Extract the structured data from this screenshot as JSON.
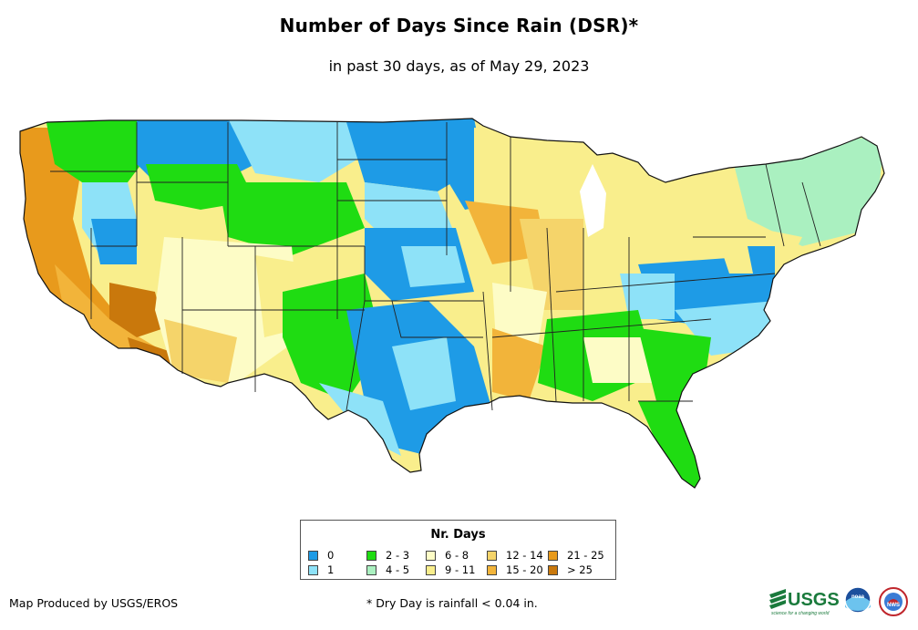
{
  "title": "Number of Days Since Rain (DSR)*",
  "subtitle": "in past 30 days, as of May 29, 2023",
  "legend": {
    "title": "Nr. Days",
    "items": [
      {
        "label": "0",
        "color": "#1e9be6"
      },
      {
        "label": "1",
        "color": "#8ee2f8"
      },
      {
        "label": "2 - 3",
        "color": "#1fdc12"
      },
      {
        "label": "4 - 5",
        "color": "#aaf0c0"
      },
      {
        "label": "6 - 8",
        "color": "#fdfcc6"
      },
      {
        "label": "9 - 11",
        "color": "#f9ee8c"
      },
      {
        "label": "12 - 14",
        "color": "#f5d46a"
      },
      {
        "label": "15 - 20",
        "color": "#f2b43a"
      },
      {
        "label": "21 - 25",
        "color": "#e89a1c"
      },
      {
        "label": "> 25",
        "color": "#c9780c"
      }
    ]
  },
  "footer": {
    "produced_by": "Map Produced by USGS/EROS",
    "note": "* Dry Day is rainfall < 0.04 in."
  },
  "logos": {
    "usgs_text": "USGS",
    "usgs_tagline": "science for a changing world",
    "noaa_text": "noaa",
    "nws_text": "NWS"
  }
}
